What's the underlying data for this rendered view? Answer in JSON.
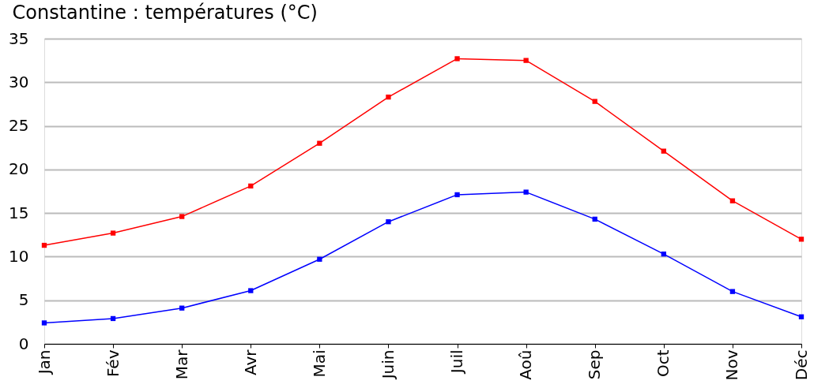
{
  "chart_data": {
    "type": "line",
    "title": "Constantine : températures (°C)",
    "categories": [
      "Jan",
      "Fév",
      "Mar",
      "Avr",
      "Mai",
      "Juin",
      "Juil",
      "Aoû",
      "Sep",
      "Oct",
      "Nov",
      "Déc"
    ],
    "series": [
      {
        "color": "#ff0000",
        "values": [
          11.3,
          12.7,
          14.6,
          18.1,
          23.0,
          28.3,
          32.7,
          32.5,
          27.8,
          22.1,
          16.4,
          12.0
        ]
      },
      {
        "color": "#0000ff",
        "values": [
          2.4,
          2.9,
          4.1,
          6.1,
          9.7,
          14.0,
          17.1,
          17.4,
          14.3,
          10.3,
          6.0,
          3.1
        ]
      }
    ],
    "ylim": [
      0,
      35
    ],
    "yticks": [
      0,
      5,
      10,
      15,
      20,
      25,
      30,
      35
    ],
    "grid": "y",
    "marker": "square",
    "line_style": "solid"
  }
}
